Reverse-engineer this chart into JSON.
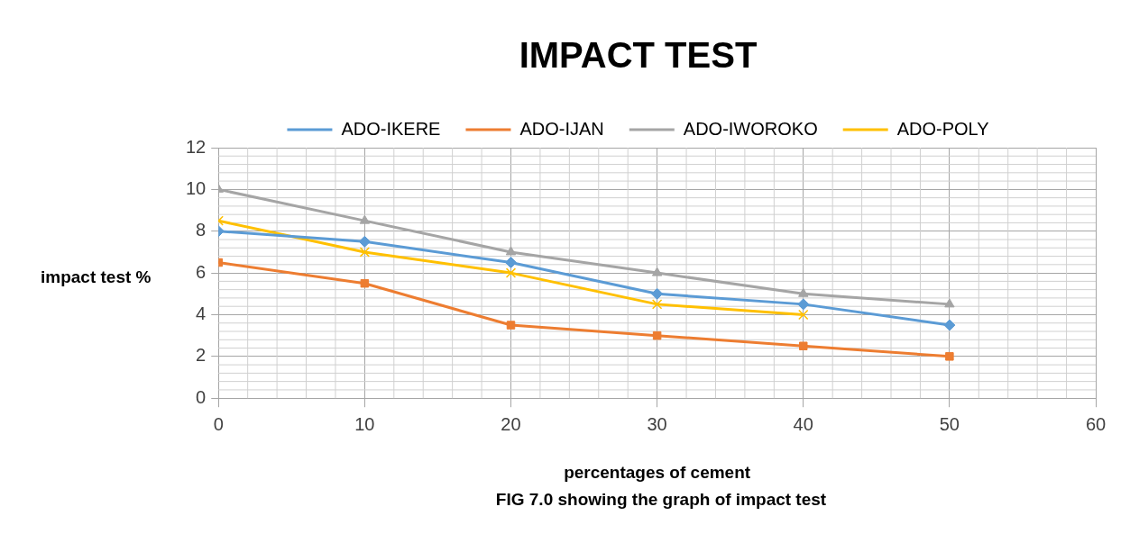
{
  "chart_data": {
    "type": "line",
    "title": "IMPACT TEST",
    "xlabel": "percentages of cement",
    "ylabel": "impact test %",
    "annotations": [
      "FIG 7.0 showing the graph of impact test"
    ],
    "x": [
      0,
      10,
      20,
      30,
      40,
      50
    ],
    "series": [
      {
        "name": "ADO-IKERE",
        "color": "#5b9bd5",
        "marker": "diamond",
        "values": [
          8,
          7.5,
          6.5,
          5,
          4.5,
          3.5
        ]
      },
      {
        "name": "ADO-IJAN",
        "color": "#ed7d31",
        "marker": "square",
        "values": [
          6.5,
          5.5,
          3.5,
          3,
          2.5,
          2
        ]
      },
      {
        "name": "ADO-IWOROKO",
        "color": "#a5a5a5",
        "marker": "triangle",
        "values": [
          10,
          8.5,
          7,
          6,
          5,
          4.5
        ]
      },
      {
        "name": "ADO-POLY",
        "color": "#ffc000",
        "marker": "cross",
        "values": [
          8.5,
          7,
          6,
          4.5,
          4,
          null
        ]
      }
    ],
    "xlim": [
      0,
      60
    ],
    "xticks": [
      0,
      10,
      20,
      30,
      40,
      50,
      60
    ],
    "ylim": [
      0,
      12
    ],
    "yticks": [
      0,
      2,
      4,
      6,
      8,
      10,
      12
    ],
    "grid": true,
    "legend": "top",
    "line_style": "solid"
  }
}
